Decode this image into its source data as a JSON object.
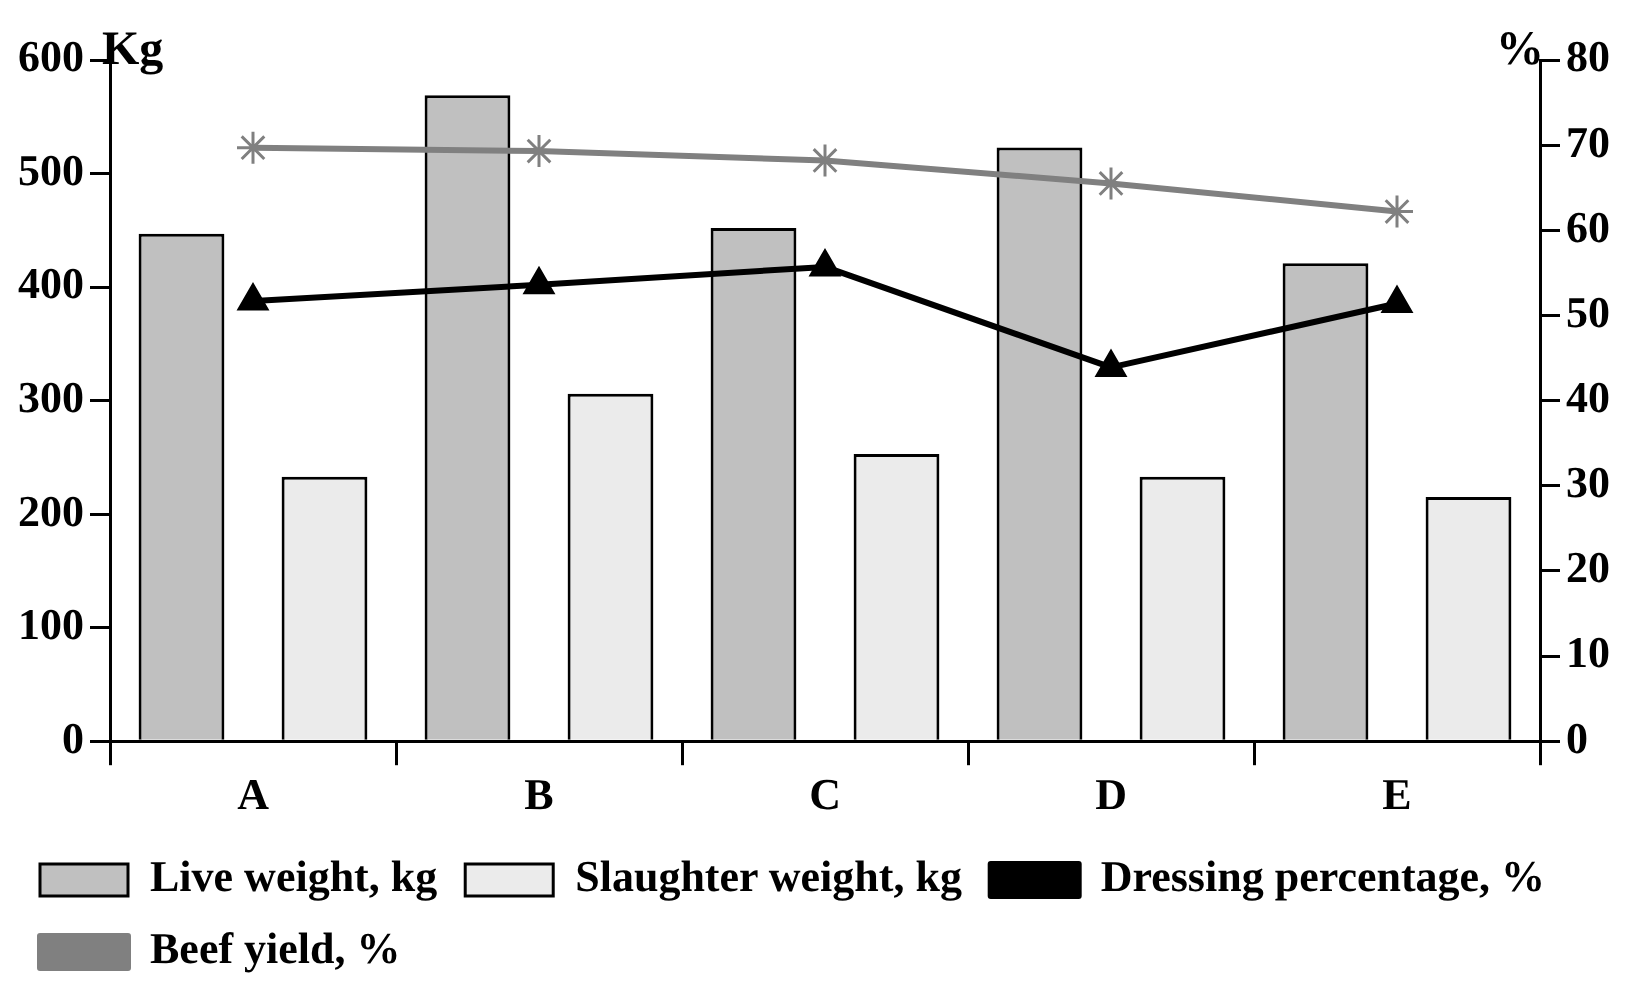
{
  "chart_data": {
    "type": "bar",
    "ylabel": "Kg",
    "y2label": "%",
    "categories": [
      "A",
      "B",
      "C",
      "D",
      "E"
    ],
    "series": [
      {
        "name": "Live weight, kg",
        "color": "#c0c0c0",
        "values": [
          447,
          569,
          452,
          523,
          421
        ]
      },
      {
        "name": "Slaughter weight, kg",
        "color": "#ebebeb",
        "values": [
          233,
          306,
          253,
          233,
          215
        ]
      },
      {
        "name": "Dressing percentage, %",
        "type": "line",
        "axis": "y2",
        "color": "#000000",
        "marker": "triangle",
        "values": [
          51.7,
          53.6,
          55.7,
          43.9,
          51.4
        ]
      },
      {
        "name": "Beef yield, %",
        "type": "line",
        "axis": "y2",
        "color": "#808080",
        "marker": "cross",
        "values": [
          69.7,
          69.3,
          68.2,
          65.5,
          62.2
        ]
      }
    ],
    "ylim": [
      0,
      600
    ],
    "yticks": [
      0,
      100,
      200,
      300,
      400,
      500,
      600
    ],
    "y2lim": [
      0,
      80
    ],
    "y2ticks": [
      0,
      10,
      20,
      30,
      40,
      50,
      60,
      70,
      80
    ],
    "grid": false,
    "legend": "bottom",
    "line_style": "solid"
  }
}
